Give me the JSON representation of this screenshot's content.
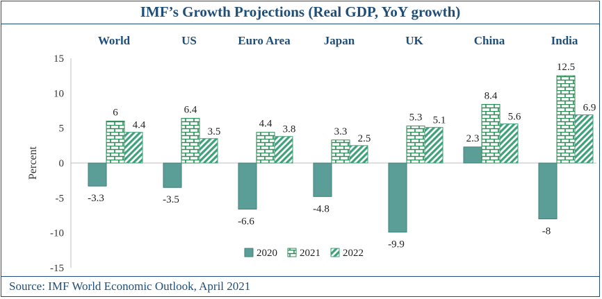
{
  "title": "IMF’s Growth Projections (Real GDP, YoY growth)",
  "source": "Source: IMF World Economic Outlook, April 2021",
  "colors": {
    "border": "#1f4e79",
    "s2020": "#5b9e98",
    "s2021": "#2e8b57",
    "s2022": "#3fa07a"
  },
  "chart_data": {
    "type": "bar",
    "title": "IMF’s Growth Projections (Real GDP, YoY growth)",
    "xlabel": "",
    "ylabel": "Percent",
    "ylim": [
      -15,
      15
    ],
    "yticks": [
      15,
      10,
      5,
      0,
      -5,
      -10,
      -15
    ],
    "categories": [
      "World",
      "US",
      "Euro Area",
      "Japan",
      "UK",
      "China",
      "India"
    ],
    "series": [
      {
        "name": "2020",
        "values": [
          -3.3,
          -3.5,
          -6.6,
          -4.8,
          -9.9,
          2.3,
          -8
        ]
      },
      {
        "name": "2021",
        "values": [
          6,
          6.4,
          4.4,
          3.3,
          5.3,
          8.4,
          12.5
        ]
      },
      {
        "name": "2022",
        "values": [
          4.4,
          3.5,
          3.8,
          2.5,
          5.1,
          5.6,
          6.9
        ]
      }
    ],
    "legend": "bottom-center",
    "grid": false
  }
}
